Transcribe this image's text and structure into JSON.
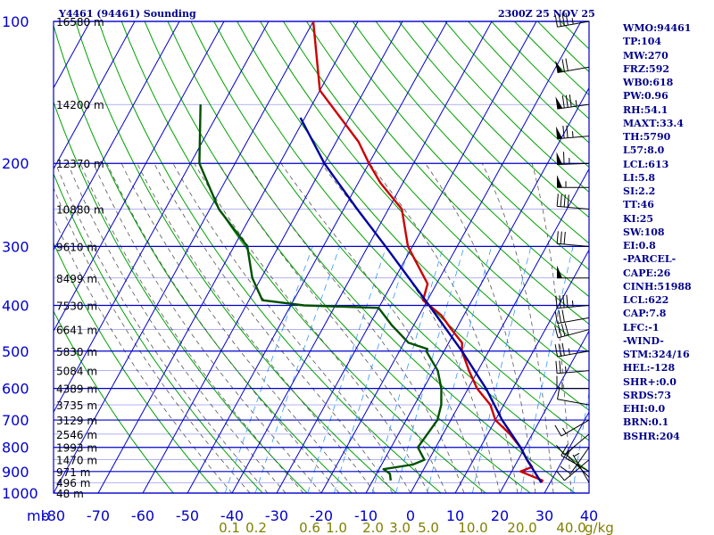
{
  "chart_data": {
    "type": "skew-t log-p sounding",
    "title": "Y4461 (94461) Sounding",
    "valid_time": "2300Z 25 NOV 25",
    "pressure_axis_label": "mb",
    "pressure_levels": [
      100,
      200,
      300,
      400,
      500,
      600,
      700,
      800,
      900,
      1000
    ],
    "pressure_range": [
      1000,
      100
    ],
    "temperature_axis": [
      -80,
      -70,
      -60,
      -50,
      -40,
      -30,
      -20,
      -10,
      0,
      10,
      20,
      30,
      40
    ],
    "temperature_range": [
      -80,
      40
    ],
    "mixing_ratio_labels": [
      "0.1",
      "0.2",
      "0.6",
      "1.0",
      "2.0",
      "3.0",
      "5.0",
      "10.0",
      "20.0",
      "40.0"
    ],
    "mixing_ratio_unit": "g/kg",
    "height_labels": [
      {
        "p": 100,
        "text": "16580 m"
      },
      {
        "p": 150,
        "text": "14200 m"
      },
      {
        "p": 200,
        "text": "12370 m"
      },
      {
        "p": 250,
        "text": "10880 m"
      },
      {
        "p": 300,
        "text": "9610 m"
      },
      {
        "p": 350,
        "text": "8499 m"
      },
      {
        "p": 400,
        "text": "7530 m"
      },
      {
        "p": 450,
        "text": "6641 m"
      },
      {
        "p": 500,
        "text": "5830 m"
      },
      {
        "p": 550,
        "text": "5084 m"
      },
      {
        "p": 600,
        "text": "4389 m"
      },
      {
        "p": 650,
        "text": "3735 m"
      },
      {
        "p": 700,
        "text": "3129 m"
      },
      {
        "p": 750,
        "text": "2546 m"
      },
      {
        "p": 800,
        "text": "1993 m"
      },
      {
        "p": 850,
        "text": "1470 m"
      },
      {
        "p": 900,
        "text": "971 m"
      },
      {
        "p": 950,
        "text": "496 m"
      },
      {
        "p": 1000,
        "text": "48 m"
      }
    ],
    "series": [
      {
        "name": "temperature",
        "color": "#cc0000",
        "points": [
          [
            100,
            -80
          ],
          [
            140,
            -70
          ],
          [
            180,
            -55
          ],
          [
            200,
            -50
          ],
          [
            220,
            -45
          ],
          [
            250,
            -37
          ],
          [
            300,
            -31
          ],
          [
            360,
            -22
          ],
          [
            390,
            -21
          ],
          [
            420,
            -15
          ],
          [
            450,
            -11
          ],
          [
            480,
            -7
          ],
          [
            500,
            -6
          ],
          [
            550,
            -2
          ],
          [
            600,
            2
          ],
          [
            650,
            7
          ],
          [
            700,
            10
          ],
          [
            750,
            15
          ],
          [
            800,
            19
          ],
          [
            850,
            22
          ],
          [
            880,
            24
          ],
          [
            900,
            22
          ],
          [
            940,
            28
          ],
          [
            950,
            28
          ]
        ]
      },
      {
        "name": "dewpoint",
        "color": "#005000",
        "points": [
          [
            150,
            -95
          ],
          [
            200,
            -88
          ],
          [
            250,
            -78
          ],
          [
            300,
            -67
          ],
          [
            350,
            -62
          ],
          [
            390,
            -57
          ],
          [
            400,
            -47
          ],
          [
            405,
            -30
          ],
          [
            440,
            -25
          ],
          [
            480,
            -19
          ],
          [
            495,
            -14
          ],
          [
            500,
            -14
          ],
          [
            550,
            -9
          ],
          [
            600,
            -6
          ],
          [
            650,
            -4
          ],
          [
            700,
            -3
          ],
          [
            800,
            -4
          ],
          [
            850,
            -1
          ],
          [
            870,
            -3
          ],
          [
            890,
            -9
          ],
          [
            910,
            -7
          ],
          [
            940,
            -6
          ]
        ]
      },
      {
        "name": "parcel",
        "color": "#0000a0",
        "points": [
          [
            950,
            28
          ],
          [
            850,
            22
          ],
          [
            800,
            19
          ],
          [
            700,
            11.5
          ],
          [
            600,
            4
          ],
          [
            500,
            -6
          ],
          [
            400,
            -19
          ],
          [
            300,
            -36
          ],
          [
            250,
            -47
          ],
          [
            200,
            -60
          ],
          [
            160,
            -71
          ]
        ]
      }
    ],
    "wind_barbs": [
      {
        "p": 100,
        "dir": 260,
        "spd": 45
      },
      {
        "p": 125,
        "dir": 260,
        "spd": 70
      },
      {
        "p": 150,
        "dir": 262,
        "spd": 85
      },
      {
        "p": 175,
        "dir": 265,
        "spd": 75
      },
      {
        "p": 200,
        "dir": 268,
        "spd": 65
      },
      {
        "p": 225,
        "dir": 270,
        "spd": 55
      },
      {
        "p": 250,
        "dir": 275,
        "spd": 40
      },
      {
        "p": 300,
        "dir": 275,
        "spd": 30
      },
      {
        "p": 350,
        "dir": 270,
        "spd": 50
      },
      {
        "p": 400,
        "dir": 265,
        "spd": 45
      },
      {
        "p": 425,
        "dir": 260,
        "spd": 30
      },
      {
        "p": 450,
        "dir": 255,
        "spd": 40
      },
      {
        "p": 500,
        "dir": 260,
        "spd": 35
      },
      {
        "p": 550,
        "dir": 265,
        "spd": 25
      },
      {
        "p": 600,
        "dir": 270,
        "spd": 15
      },
      {
        "p": 650,
        "dir": 280,
        "spd": 10
      },
      {
        "p": 700,
        "dir": 240,
        "spd": 15
      },
      {
        "p": 750,
        "dir": 230,
        "spd": 10
      },
      {
        "p": 800,
        "dir": 215,
        "spd": 10
      },
      {
        "p": 850,
        "dir": 230,
        "spd": 10
      },
      {
        "p": 900,
        "dir": 300,
        "spd": 15
      },
      {
        "p": 925,
        "dir": 315,
        "spd": 10
      },
      {
        "p": 950,
        "dir": 330,
        "spd": 5
      }
    ],
    "grid": true
  },
  "stats": [
    "WMO:94461",
    "TP:104",
    "MW:270",
    "FRZ:592",
    "WB0:618",
    "PW:0.96",
    "RH:54.1",
    "MAXT:33.4",
    "TH:5790",
    "L57:8.0",
    "LCL:613",
    "LI:5.8",
    "SI:2.2",
    "TT:46",
    "KI:25",
    "SW:108",
    "EI:0.8",
    "-PARCEL-",
    "CAPE:26",
    "CINH:51988",
    "LCL:622",
    "CAP:7.8",
    "LFC:-1",
    "-WIND-",
    "STM:324/16",
    "HEL:-128",
    "SHR+:0.0",
    "SRDS:73",
    "EHI:0.0",
    "BRN:0.1",
    "BSHR:204"
  ],
  "colors": {
    "isobar": "#0000cd",
    "isotherm": "#0000cd",
    "dry_adiabat": "#00a000",
    "moist_adiabat": "#555555",
    "mixing_ratio": "#3399ff",
    "text": "#00008b",
    "mixing_label": "#808000",
    "height_label": "#000000"
  }
}
